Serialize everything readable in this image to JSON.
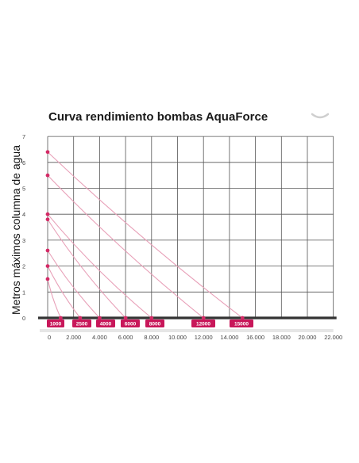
{
  "chart_data": {
    "type": "line",
    "title": "Curva rendimiento bombas AquaForce",
    "ylabel": "Metros máximos columna de agua",
    "xlabel": "",
    "xlim": [
      0,
      22000
    ],
    "ylim": [
      0,
      7
    ],
    "x_tick_labels": [
      "0",
      "2.000",
      "4.000",
      "6.000",
      "8.000",
      "10.000",
      "12.000",
      "14.000",
      "16.000",
      "18.000",
      "20.000",
      "22.000"
    ],
    "x_ticks": [
      0,
      2000,
      4000,
      6000,
      8000,
      10000,
      12000,
      14000,
      16000,
      18000,
      20000,
      22000
    ],
    "y_ticks": [
      0,
      1,
      2,
      3,
      4,
      5,
      6,
      7
    ],
    "y_tick_labels": [
      "0",
      "1",
      "2",
      "3",
      "4",
      "5",
      "6",
      "7"
    ],
    "grid": true,
    "colors": {
      "curve": "#e8a0b8",
      "marker": "#d42a66",
      "badge": "#c8175a",
      "grid": "#555555"
    },
    "series": [
      {
        "name": "1000",
        "x": [
          0,
          1000
        ],
        "y": [
          1.5,
          0
        ]
      },
      {
        "name": "2500",
        "x": [
          0,
          2500
        ],
        "y": [
          2.0,
          0
        ]
      },
      {
        "name": "4000",
        "x": [
          0,
          4000
        ],
        "y": [
          2.6,
          0
        ]
      },
      {
        "name": "6000",
        "x": [
          0,
          6000
        ],
        "y": [
          3.8,
          0
        ]
      },
      {
        "name": "8000",
        "x": [
          0,
          8000
        ],
        "y": [
          4.0,
          0
        ]
      },
      {
        "name": "12000",
        "x": [
          0,
          12000
        ],
        "y": [
          5.5,
          0
        ]
      },
      {
        "name": "15000",
        "x": [
          0,
          15000
        ],
        "y": [
          6.4,
          0
        ]
      }
    ]
  }
}
